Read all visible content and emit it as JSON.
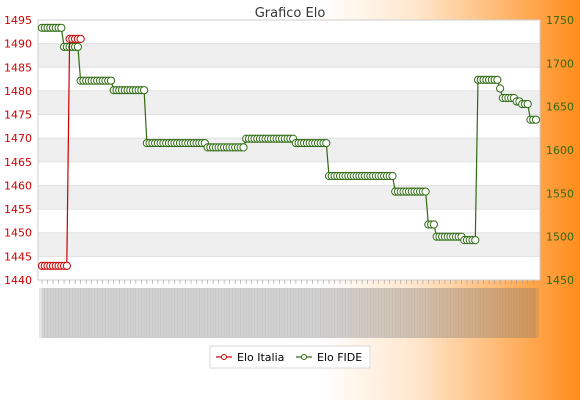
{
  "chart_data": {
    "type": "line",
    "title": "Grafico Elo",
    "xlabel": "",
    "ylabel_left": "",
    "ylabel_right": "",
    "left_axis": {
      "ylim": [
        1440,
        1495
      ],
      "ticks": [
        "1440",
        "1445",
        "1450",
        "1455",
        "1460",
        "1465",
        "1470",
        "1475",
        "1480",
        "1485",
        "1490",
        "1495"
      ],
      "color": "#cc0000"
    },
    "right_axis": {
      "ylim": [
        1450,
        1750
      ],
      "ticks": [
        "1450",
        "1500",
        "1550",
        "1600",
        "1650",
        "1700",
        "1750"
      ],
      "color": "#2e6b12"
    },
    "grid": true,
    "legend_position": "bottom",
    "series": [
      {
        "name": "Elo Italia",
        "axis": "left",
        "color": "#cc0000",
        "values": [
          1443,
          1443,
          1443,
          1443,
          1443,
          1443,
          1443,
          1443,
          1443,
          1443,
          1491,
          1491,
          1491,
          1491,
          1491
        ]
      },
      {
        "name": "Elo FIDE",
        "axis": "right",
        "color": "#2e6b12",
        "segments": [
          {
            "value": 1741,
            "count": 8
          },
          {
            "value": 1719,
            "count": 6
          },
          {
            "value": 1680,
            "count": 12
          },
          {
            "value": 1669,
            "count": 12
          },
          {
            "value": 1608,
            "count": 22
          },
          {
            "value": 1603,
            "count": 14
          },
          {
            "value": 1613,
            "count": 18
          },
          {
            "value": 1608,
            "count": 12
          },
          {
            "value": 1570,
            "count": 24
          },
          {
            "value": 1552,
            "count": 12
          },
          {
            "value": 1514,
            "count": 3
          },
          {
            "value": 1500,
            "count": 10
          },
          {
            "value": 1496,
            "count": 5
          },
          {
            "value": 1681,
            "count": 8
          },
          {
            "value": 1671,
            "count": 1
          },
          {
            "value": 1660,
            "count": 5
          },
          {
            "value": 1656,
            "count": 2
          },
          {
            "value": 1653,
            "count": 3
          },
          {
            "value": 1635,
            "count": 3
          }
        ]
      }
    ]
  }
}
